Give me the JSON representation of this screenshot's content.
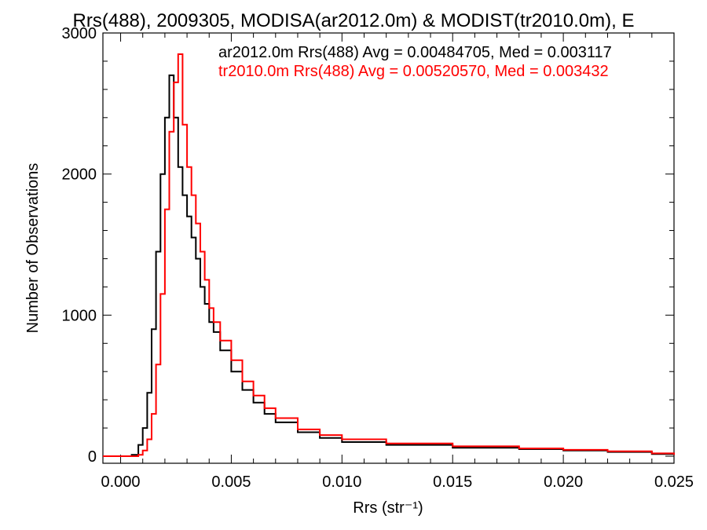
{
  "chart_data": {
    "type": "line",
    "title": "Rrs(488), 2009305, MODISA(ar2012.0m) & MODIST(tr2010.0m), E",
    "xlabel": "Rrs (str⁻¹)",
    "ylabel": "Number of Observations",
    "xlim": [
      -0.0008,
      0.025
    ],
    "ylim": [
      -50,
      3000
    ],
    "x_ticks": [
      "0.000",
      "0.005",
      "0.010",
      "0.015",
      "0.020",
      "0.025"
    ],
    "y_ticks": [
      "0",
      "1000",
      "2000",
      "3000"
    ],
    "legend_position": "top-right",
    "grid": false,
    "series": [
      {
        "name": "ar2012.0m Rrs(488) Avg = 0.00484705, Med = 0.003117",
        "color": "#000000",
        "x": [
          -0.0008,
          0.0,
          0.0005,
          0.0008,
          0.001,
          0.0012,
          0.0014,
          0.0016,
          0.0018,
          0.002,
          0.0022,
          0.0024,
          0.0026,
          0.0028,
          0.003,
          0.0032,
          0.0034,
          0.0036,
          0.0038,
          0.004,
          0.0042,
          0.0045,
          0.005,
          0.0055,
          0.006,
          0.0065,
          0.007,
          0.008,
          0.009,
          0.01,
          0.012,
          0.015,
          0.018,
          0.02,
          0.022,
          0.024,
          0.025
        ],
        "values": [
          0,
          0,
          10,
          80,
          200,
          450,
          900,
          1450,
          2000,
          2400,
          2700,
          2400,
          2050,
          1850,
          1700,
          1550,
          1400,
          1200,
          1080,
          950,
          880,
          750,
          600,
          470,
          380,
          300,
          240,
          170,
          130,
          100,
          80,
          60,
          50,
          40,
          30,
          15,
          10
        ]
      },
      {
        "name": "tr2010.0m Rrs(488) Avg = 0.00520570, Med = 0.003432",
        "color": "#ff0000",
        "x": [
          -0.0008,
          0.0,
          0.0005,
          0.0008,
          0.001,
          0.0012,
          0.0014,
          0.0016,
          0.0018,
          0.002,
          0.0022,
          0.0024,
          0.0026,
          0.0028,
          0.003,
          0.0032,
          0.0034,
          0.0036,
          0.0038,
          0.004,
          0.0042,
          0.0045,
          0.005,
          0.0055,
          0.006,
          0.0065,
          0.007,
          0.008,
          0.009,
          0.01,
          0.012,
          0.015,
          0.018,
          0.02,
          0.022,
          0.024,
          0.025
        ],
        "values": [
          0,
          0,
          0,
          10,
          40,
          120,
          300,
          650,
          1150,
          1750,
          2300,
          2650,
          2850,
          2350,
          2050,
          1850,
          1650,
          1450,
          1250,
          1050,
          950,
          820,
          680,
          530,
          430,
          340,
          270,
          190,
          150,
          120,
          90,
          70,
          55,
          45,
          35,
          20,
          10
        ]
      }
    ]
  }
}
